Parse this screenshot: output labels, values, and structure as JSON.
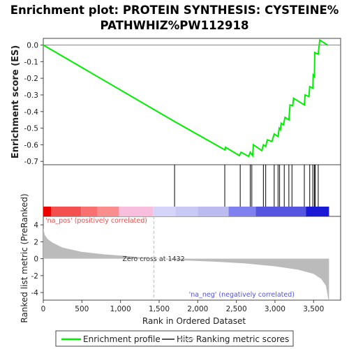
{
  "chart_data": {
    "type": "line",
    "title_line1": "Enrichment plot: PROTEIN SYNTHESIS: CYSTEINE%",
    "title_line2": "PATHWHIZ%PW112918",
    "es_panel": {
      "ylabel": "Enrichment score (ES)",
      "ylim": [
        -0.72,
        0.04
      ],
      "yticks": [
        0.0,
        -0.1,
        -0.2,
        -0.3,
        -0.4,
        -0.5,
        -0.6,
        -0.7
      ],
      "ytick_labels": [
        "0.0",
        "-0.1",
        "-0.2",
        "-0.3",
        "-0.4",
        "-0.5",
        "-0.6",
        "-0.7"
      ],
      "line_color": "#00ee00",
      "points": [
        [
          0,
          0.0
        ],
        [
          1700,
          -0.46
        ],
        [
          2350,
          -0.63
        ],
        [
          2360,
          -0.615
        ],
        [
          2540,
          -0.665
        ],
        [
          2560,
          -0.645
        ],
        [
          2660,
          -0.67
        ],
        [
          2680,
          -0.645
        ],
        [
          2710,
          -0.665
        ],
        [
          2720,
          -0.6
        ],
        [
          2830,
          -0.635
        ],
        [
          2850,
          -0.6
        ],
        [
          2880,
          -0.61
        ],
        [
          2900,
          -0.57
        ],
        [
          2960,
          -0.58
        ],
        [
          2990,
          -0.535
        ],
        [
          3040,
          -0.55
        ],
        [
          3055,
          -0.5
        ],
        [
          3070,
          -0.51
        ],
        [
          3080,
          -0.47
        ],
        [
          3110,
          -0.48
        ],
        [
          3130,
          -0.435
        ],
        [
          3180,
          -0.45
        ],
        [
          3195,
          -0.36
        ],
        [
          3230,
          -0.365
        ],
        [
          3240,
          -0.32
        ],
        [
          3380,
          -0.36
        ],
        [
          3390,
          -0.3
        ],
        [
          3440,
          -0.31
        ],
        [
          3450,
          -0.25
        ],
        [
          3490,
          -0.26
        ],
        [
          3495,
          -0.18
        ],
        [
          3510,
          -0.19
        ],
        [
          3515,
          -0.045
        ],
        [
          3560,
          -0.055
        ],
        [
          3580,
          0.03
        ],
        [
          3680,
          0.0
        ]
      ]
    },
    "hits_panel": {
      "legend_name": "Hits",
      "hit_positions": [
        1700,
        2350,
        2550,
        2680,
        2700,
        2850,
        2880,
        2990,
        3040,
        3060,
        3120,
        3180,
        3220,
        3380,
        3450,
        3490,
        3510,
        3520,
        3560
      ]
    },
    "ranked_panel": {
      "ylabel": "Ranked list metric (PreRanked)",
      "ylim": [
        -4.9,
        5.0
      ],
      "yticks": [
        4,
        2,
        0,
        -2,
        -4
      ],
      "ytick_labels": [
        "4",
        "2",
        "0",
        "-2",
        "-4"
      ],
      "fill_color": "#bbbbbb",
      "zero_cross": 1432,
      "zero_cross_label": "Zero cross at 1432",
      "pos_label": "'na_pos' (positively correlated)",
      "neg_label": "'na_neg' (negatively correlated)",
      "profile": [
        [
          0,
          3.6
        ],
        [
          20,
          2.8
        ],
        [
          60,
          2.3
        ],
        [
          120,
          1.9
        ],
        [
          250,
          1.3
        ],
        [
          500,
          0.8
        ],
        [
          800,
          0.5
        ],
        [
          1100,
          0.3
        ],
        [
          1432,
          0.0
        ],
        [
          1800,
          -0.2
        ],
        [
          2200,
          -0.35
        ],
        [
          2600,
          -0.55
        ],
        [
          3000,
          -0.9
        ],
        [
          3300,
          -1.3
        ],
        [
          3500,
          -1.8
        ],
        [
          3600,
          -2.4
        ],
        [
          3660,
          -3.2
        ],
        [
          3690,
          -4.8
        ],
        [
          3700,
          -4.8
        ]
      ]
    },
    "color_bar": {
      "boundaries": [
        0,
        100,
        490,
        700,
        980,
        1420,
        1710,
        2000,
        2400,
        2750,
        3400,
        3700
      ],
      "colors": [
        "#ee0000",
        "#f45050",
        "#f87070",
        "#fa8e8e",
        "#f7bede",
        "#d5d5fa",
        "#c9c9f5",
        "#bbbbf0",
        "#8080ee",
        "#5555e2",
        "#1a1ad6"
      ]
    },
    "x_axis": {
      "xlabel": "Rank in Ordered Dataset",
      "xlim": [
        0,
        3850
      ],
      "xticks": [
        0,
        500,
        1000,
        1500,
        2000,
        2500,
        3000,
        3500
      ],
      "xtick_labels": [
        "0",
        "500",
        "1,000",
        "1,500",
        "2,000",
        "2,500",
        "3,000",
        "3,500"
      ]
    },
    "legend": {
      "items": [
        {
          "label": "Enrichment profile",
          "color": "#00ee00"
        },
        {
          "label": "Hits",
          "color": "#555555"
        },
        {
          "label": "Ranking metric scores",
          "color": "#cccccc"
        }
      ]
    }
  }
}
